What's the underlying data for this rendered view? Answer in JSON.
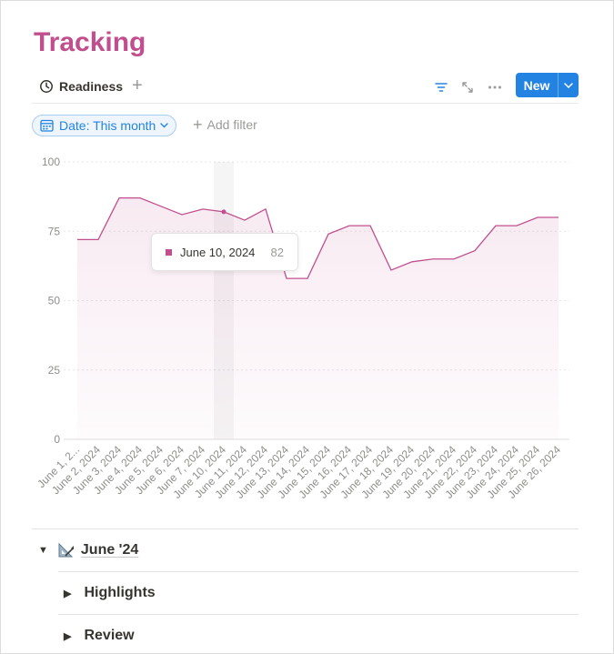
{
  "page": {
    "title": "Tracking"
  },
  "view_tabs": [
    {
      "label": "Readiness",
      "icon": "clock-icon"
    }
  ],
  "toolbar": {
    "new_label": "New"
  },
  "filters": {
    "date_chip": "Date: This month",
    "add_filter": "Add filter"
  },
  "tooltip": {
    "date": "June 10, 2024",
    "value": "82"
  },
  "chart_data": {
    "type": "area",
    "title": "",
    "xlabel": "",
    "ylabel": "",
    "ylim": [
      0,
      100
    ],
    "yticks": [
      0,
      25,
      50,
      75,
      100
    ],
    "grid": true,
    "color": "#c14f8e",
    "highlighted_index": 7,
    "x_tick_labels": [
      "June 1, 2...",
      "June 2, 2024",
      "June 3, 2024",
      "June 4, 2024",
      "June 5, 2024",
      "June 6, 2024",
      "June 7, 2024",
      "June 10, 2024",
      "June 11, 2024",
      "June 12, 2024",
      "June 13, 2024",
      "June 14, 2024",
      "June 15, 2024",
      "June 16, 2024",
      "June 17, 2024",
      "June 18, 2024",
      "June 19, 2024",
      "June 20, 2024",
      "June 21, 2024",
      "June 22, 2024",
      "June 23, 2024",
      "June 24, 2024",
      "June 25, 2024",
      "June 26, 2024"
    ],
    "series": [
      {
        "values": [
          72,
          72,
          87,
          87,
          84,
          81,
          83,
          82,
          79,
          83,
          58,
          58,
          74,
          77,
          77,
          61,
          64,
          65,
          65,
          68,
          77,
          77,
          80,
          80
        ]
      }
    ]
  },
  "sections": [
    {
      "label": "June '24",
      "icon": "triangle-ruler-icon"
    },
    {
      "label": "Highlights"
    },
    {
      "label": "Review"
    }
  ]
}
